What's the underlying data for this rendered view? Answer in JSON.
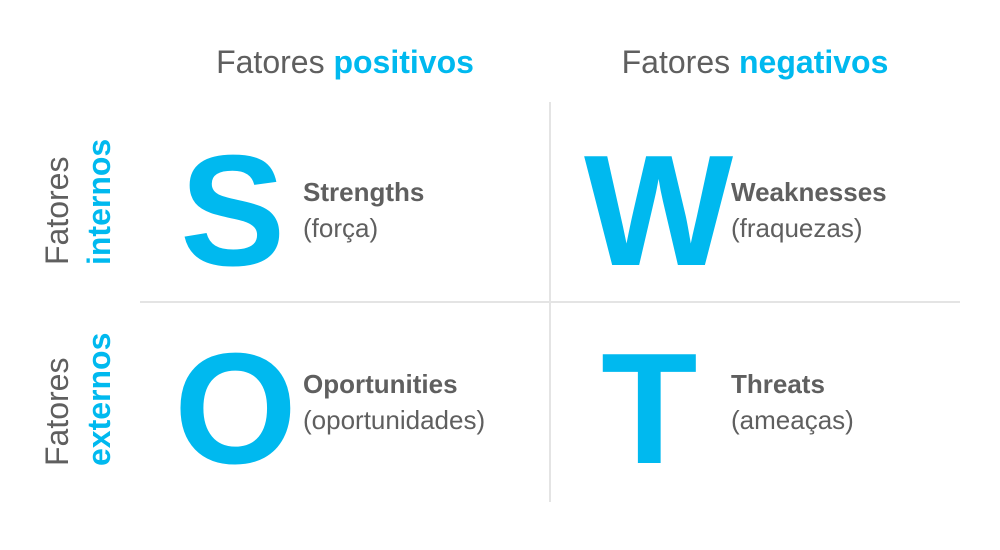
{
  "header": {
    "positive": {
      "prefix": "Fatores",
      "highlight": "positivos"
    },
    "negative": {
      "prefix": "Fatores",
      "highlight": "negativos"
    }
  },
  "rows": {
    "internal": {
      "prefix": "Fatores",
      "highlight": "internos"
    },
    "external": {
      "prefix": "Fatores",
      "highlight": "externos"
    }
  },
  "quadrants": [
    {
      "letter": "S",
      "title": "Strengths",
      "subtitle": "(força)"
    },
    {
      "letter": "W",
      "title": "Weaknesses",
      "subtitle": "(fraquezas)"
    },
    {
      "letter": "O",
      "title": "Oportunities",
      "subtitle": "(oportunidades)"
    },
    {
      "letter": "T",
      "title": "Threats",
      "subtitle": "(ameaças)"
    }
  ],
  "colors": {
    "accent": "#00b9ef",
    "text": "#5f5f5f",
    "divider": "#e4e4e4"
  }
}
